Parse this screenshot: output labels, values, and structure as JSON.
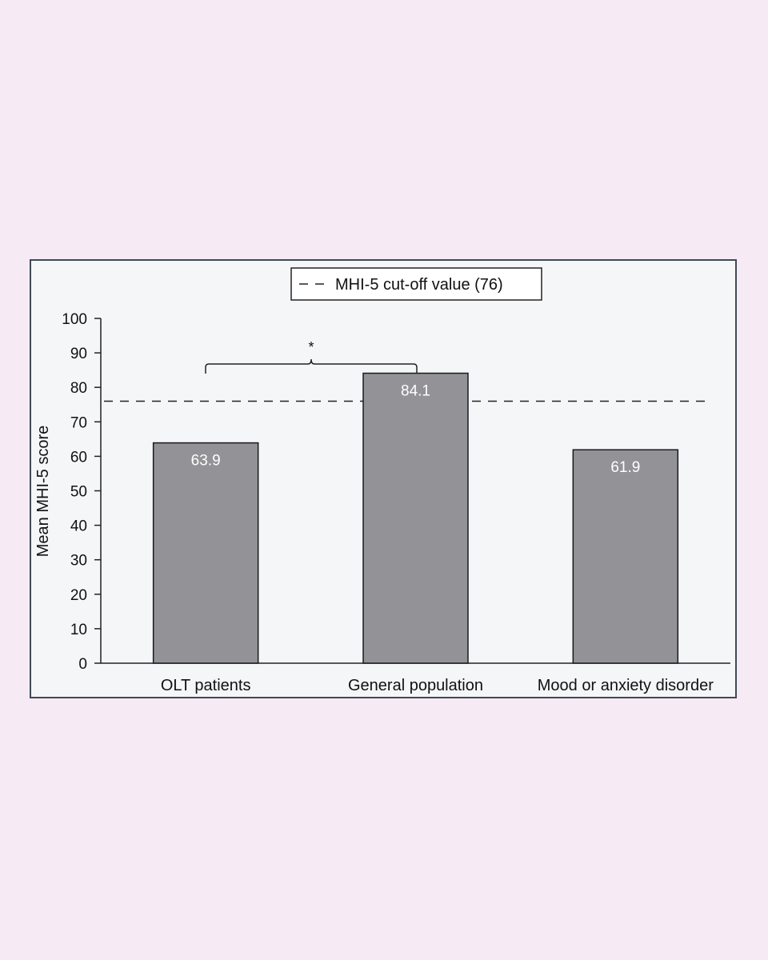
{
  "chart_data": {
    "type": "bar",
    "categories": [
      "OLT patients",
      "General population",
      "Mood or anxiety disorder"
    ],
    "values": [
      63.9,
      84.1,
      61.9
    ],
    "value_labels": [
      "63.9",
      "84.1",
      "61.9"
    ],
    "title": "",
    "xlabel": "",
    "ylabel": "Mean MHI-5 score",
    "ylim": [
      0,
      100
    ],
    "yticks": [
      0,
      10,
      20,
      30,
      40,
      50,
      60,
      70,
      80,
      90,
      100
    ],
    "grid": false,
    "reference_line": {
      "value": 76,
      "style": "dashed",
      "legend_label": "MHI-5 cut-off value (76)"
    },
    "legend_placement": "top-center",
    "annotations": [
      {
        "text": "*",
        "type": "significance-bracket",
        "between": [
          "OLT patients",
          "General population"
        ]
      }
    ],
    "colors": {
      "bar_fill": "#939397",
      "bar_stroke": "#1a1a1a",
      "frame_border": "#3f4a56",
      "plot_background": "#f4f6f8",
      "page_background": "#f6eaf5"
    }
  }
}
